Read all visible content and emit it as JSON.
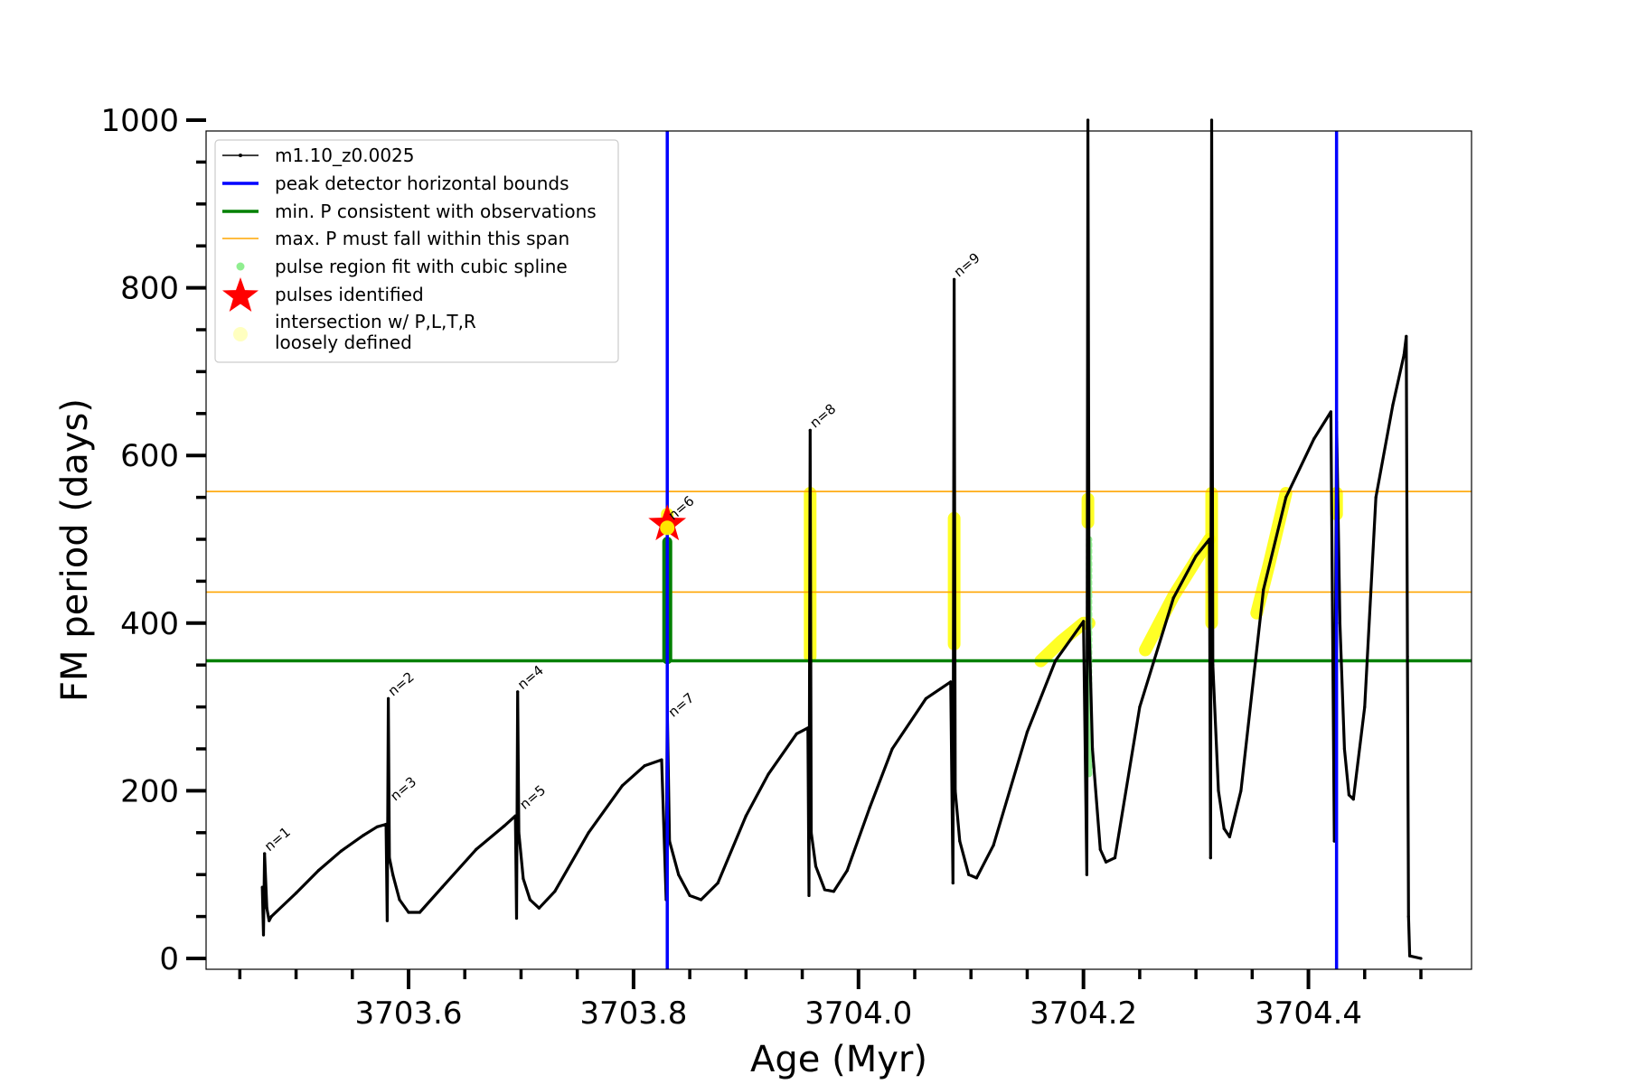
{
  "chart_data": {
    "type": "line",
    "xlabel": "Age (Myr)",
    "ylabel": "FM period (days)",
    "xlim": [
      3703.42,
      3704.545
    ],
    "ylim": [
      0,
      1000
    ],
    "xticks": [
      3703.6,
      3703.8,
      3704.0,
      3704.2,
      3704.4
    ],
    "xticks_minor": [
      3703.45,
      3703.5,
      3703.55,
      3703.65,
      3703.7,
      3703.75,
      3703.85,
      3703.9,
      3703.95,
      3704.05,
      3704.1,
      3704.15,
      3704.25,
      3704.3,
      3704.35,
      3704.45,
      3704.5
    ],
    "yticks": [
      0,
      200,
      400,
      600,
      800,
      1000
    ],
    "yticks_minor": [
      50,
      100,
      150,
      250,
      300,
      350,
      450,
      500,
      550,
      650,
      700,
      750,
      850,
      900,
      950
    ],
    "grid": false,
    "legend_position": "top-left",
    "colors": {
      "track": "#000000",
      "bounds": "#0000ff",
      "min_p": "#008000",
      "max_p": "#ffa500",
      "spline": "#90ee90",
      "pulse": "#ff0000",
      "loose": "#ffff00",
      "loose_legend": "#ffffc0"
    },
    "legend": [
      {
        "label": "m1.10_z0.0025",
        "kind": "track"
      },
      {
        "label": "peak detector horizontal bounds",
        "kind": "bounds"
      },
      {
        "label": "min. P consistent with observations",
        "kind": "min_p"
      },
      {
        "label": "max. P must fall within this span",
        "kind": "max_p"
      },
      {
        "label": "pulse region fit with cubic spline",
        "kind": "spline"
      },
      {
        "label": "pulses identified",
        "kind": "pulse"
      },
      {
        "label": "intersection w/ P,L,T,R",
        "label2": "loosely defined",
        "kind": "loose"
      }
    ],
    "hlines": {
      "min_p": 355,
      "max_p": [
        437,
        557
      ]
    },
    "vlines": [
      3703.83,
      3704.425
    ],
    "track": [
      [
        3703.47,
        85
      ],
      [
        3703.471,
        28
      ],
      [
        3703.472,
        125
      ],
      [
        3703.474,
        60
      ],
      [
        3703.476,
        45
      ],
      [
        3703.478,
        50
      ],
      [
        3703.5,
        78
      ],
      [
        3703.52,
        105
      ],
      [
        3703.54,
        128
      ],
      [
        3703.56,
        147
      ],
      [
        3703.572,
        157
      ],
      [
        3703.58,
        160
      ],
      [
        3703.581,
        45
      ],
      [
        3703.582,
        310
      ],
      [
        3703.583,
        120
      ],
      [
        3703.586,
        100
      ],
      [
        3703.592,
        70
      ],
      [
        3703.6,
        55
      ],
      [
        3703.61,
        55
      ],
      [
        3703.63,
        85
      ],
      [
        3703.66,
        130
      ],
      [
        3703.685,
        158
      ],
      [
        3703.695,
        170
      ],
      [
        3703.696,
        48
      ],
      [
        3703.697,
        318
      ],
      [
        3703.698,
        150
      ],
      [
        3703.702,
        95
      ],
      [
        3703.708,
        70
      ],
      [
        3703.716,
        60
      ],
      [
        3703.73,
        80
      ],
      [
        3703.76,
        150
      ],
      [
        3703.79,
        206
      ],
      [
        3703.81,
        230
      ],
      [
        3703.825,
        237
      ],
      [
        3703.829,
        70
      ],
      [
        3703.83,
        300
      ],
      [
        3703.832,
        140
      ],
      [
        3703.84,
        100
      ],
      [
        3703.85,
        75
      ],
      [
        3703.86,
        70
      ],
      [
        3703.875,
        90
      ],
      [
        3703.9,
        170
      ],
      [
        3703.92,
        220
      ],
      [
        3703.945,
        268
      ],
      [
        3703.955,
        275
      ],
      [
        3703.956,
        75
      ],
      [
        3703.957,
        630
      ],
      [
        3703.958,
        150
      ],
      [
        3703.962,
        110
      ],
      [
        3703.97,
        82
      ],
      [
        3703.978,
        80
      ],
      [
        3703.99,
        105
      ],
      [
        3704.01,
        180
      ],
      [
        3704.03,
        250
      ],
      [
        3704.06,
        310
      ],
      [
        3704.082,
        330
      ],
      [
        3704.084,
        90
      ],
      [
        3704.085,
        810
      ],
      [
        3704.086,
        200
      ],
      [
        3704.09,
        140
      ],
      [
        3704.098,
        100
      ],
      [
        3704.105,
        96
      ],
      [
        3704.12,
        135
      ],
      [
        3704.15,
        270
      ],
      [
        3704.175,
        355
      ],
      [
        3704.2,
        402
      ],
      [
        3704.203,
        100
      ],
      [
        3704.204,
        1000
      ],
      [
        3704.205,
        400
      ],
      [
        3704.208,
        250
      ],
      [
        3704.215,
        130
      ],
      [
        3704.22,
        115
      ],
      [
        3704.228,
        120
      ],
      [
        3704.25,
        300
      ],
      [
        3704.28,
        430
      ],
      [
        3704.3,
        480
      ],
      [
        3704.312,
        500
      ],
      [
        3704.313,
        120
      ],
      [
        3704.314,
        1000
      ],
      [
        3704.315,
        350
      ],
      [
        3704.32,
        200
      ],
      [
        3704.325,
        155
      ],
      [
        3704.33,
        145
      ],
      [
        3704.34,
        200
      ],
      [
        3704.36,
        440
      ],
      [
        3704.38,
        550
      ],
      [
        3704.405,
        620
      ],
      [
        3704.42,
        652
      ],
      [
        3704.423,
        140
      ],
      [
        3704.425,
        640
      ],
      [
        3704.428,
        400
      ],
      [
        3704.432,
        250
      ],
      [
        3704.436,
        195
      ],
      [
        3704.44,
        190
      ],
      [
        3704.45,
        300
      ],
      [
        3704.46,
        550
      ],
      [
        3704.475,
        660
      ],
      [
        3704.485,
        720
      ],
      [
        3704.487,
        742
      ],
      [
        3704.488,
        360
      ],
      [
        3704.489,
        50
      ],
      [
        3704.49,
        3
      ],
      [
        3704.5,
        0
      ]
    ],
    "spline_points": [
      [
        3703.83,
        357
      ],
      [
        3703.83,
        497
      ],
      [
        3704.205,
        220
      ],
      [
        3704.205,
        500
      ]
    ],
    "pulses": [
      [
        3703.83,
        518
      ]
    ],
    "loose_segments": [
      [
        [
          3704.162,
          355
        ],
        [
          3704.18,
          378
        ],
        [
          3704.2,
          400
        ],
        [
          3704.205,
          400
        ]
      ],
      [
        [
          3704.255,
          368
        ],
        [
          3704.28,
          432
        ],
        [
          3704.3,
          475
        ],
        [
          3704.312,
          500
        ]
      ],
      [
        [
          3704.354,
          412
        ],
        [
          3704.365,
          470
        ],
        [
          3704.38,
          555
        ]
      ],
      [
        [
          3703.83,
          515
        ],
        [
          3703.83,
          530
        ]
      ],
      [
        [
          3703.957,
          360
        ],
        [
          3703.957,
          555
        ]
      ],
      [
        [
          3704.085,
          375
        ],
        [
          3704.085,
          525
        ]
      ],
      [
        [
          3704.204,
          520
        ],
        [
          3704.204,
          548
        ]
      ],
      [
        [
          3704.314,
          400
        ],
        [
          3704.314,
          555
        ]
      ],
      [
        [
          3704.425,
          530
        ],
        [
          3704.425,
          555
        ]
      ]
    ],
    "annotations": [
      {
        "text": "n=1",
        "x": 3703.473,
        "y": 125
      },
      {
        "text": "n=2",
        "x": 3703.583,
        "y": 310
      },
      {
        "text": "n=3",
        "x": 3703.585,
        "y": 185
      },
      {
        "text": "n=4",
        "x": 3703.698,
        "y": 318
      },
      {
        "text": "n=5",
        "x": 3703.7,
        "y": 175
      },
      {
        "text": "n=6",
        "x": 3703.832,
        "y": 520
      },
      {
        "text": "n=7",
        "x": 3703.832,
        "y": 285
      },
      {
        "text": "n=8",
        "x": 3703.958,
        "y": 630
      },
      {
        "text": "n=9",
        "x": 3704.086,
        "y": 810
      }
    ]
  }
}
